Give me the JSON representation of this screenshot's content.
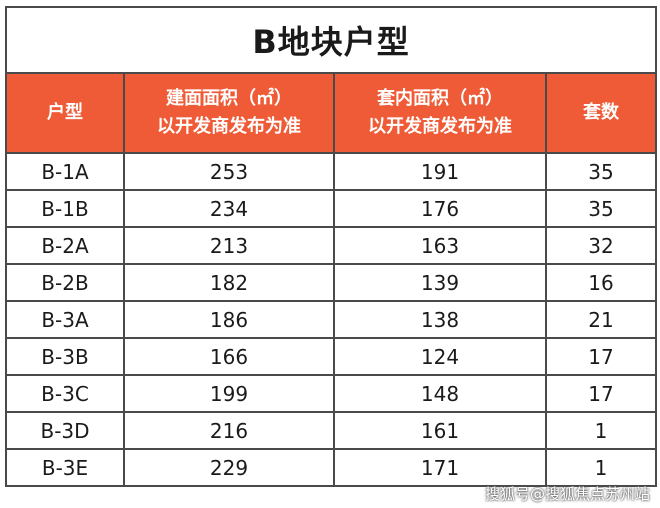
{
  "title": "B地块户型",
  "headers": {
    "type": "户型",
    "gross_area_line1": "建面面积（㎡）",
    "gross_area_line2": "以开发商发布为准",
    "inner_area_line1": "套内面积（㎡）",
    "inner_area_line2": "以开发商发布为准",
    "units": "套数"
  },
  "rows": [
    {
      "type": "B-1A",
      "gross": "253",
      "inner": "191",
      "units": "35"
    },
    {
      "type": "B-1B",
      "gross": "234",
      "inner": "176",
      "units": "35"
    },
    {
      "type": "B-2A",
      "gross": "213",
      "inner": "163",
      "units": "32"
    },
    {
      "type": "B-2B",
      "gross": "182",
      "inner": "139",
      "units": "16"
    },
    {
      "type": "B-3A",
      "gross": "186",
      "inner": "138",
      "units": "21"
    },
    {
      "type": "B-3B",
      "gross": "166",
      "inner": "124",
      "units": "17"
    },
    {
      "type": "B-3C",
      "gross": "199",
      "inner": "148",
      "units": "17"
    },
    {
      "type": "B-3D",
      "gross": "216",
      "inner": "161",
      "units": "1"
    },
    {
      "type": "B-3E",
      "gross": "229",
      "inner": "171",
      "units": "1"
    }
  ],
  "watermark": "搜狐号@搜狐焦点苏州站",
  "colors": {
    "header_bg": "#ee5b36",
    "border": "#4a4a4a"
  }
}
